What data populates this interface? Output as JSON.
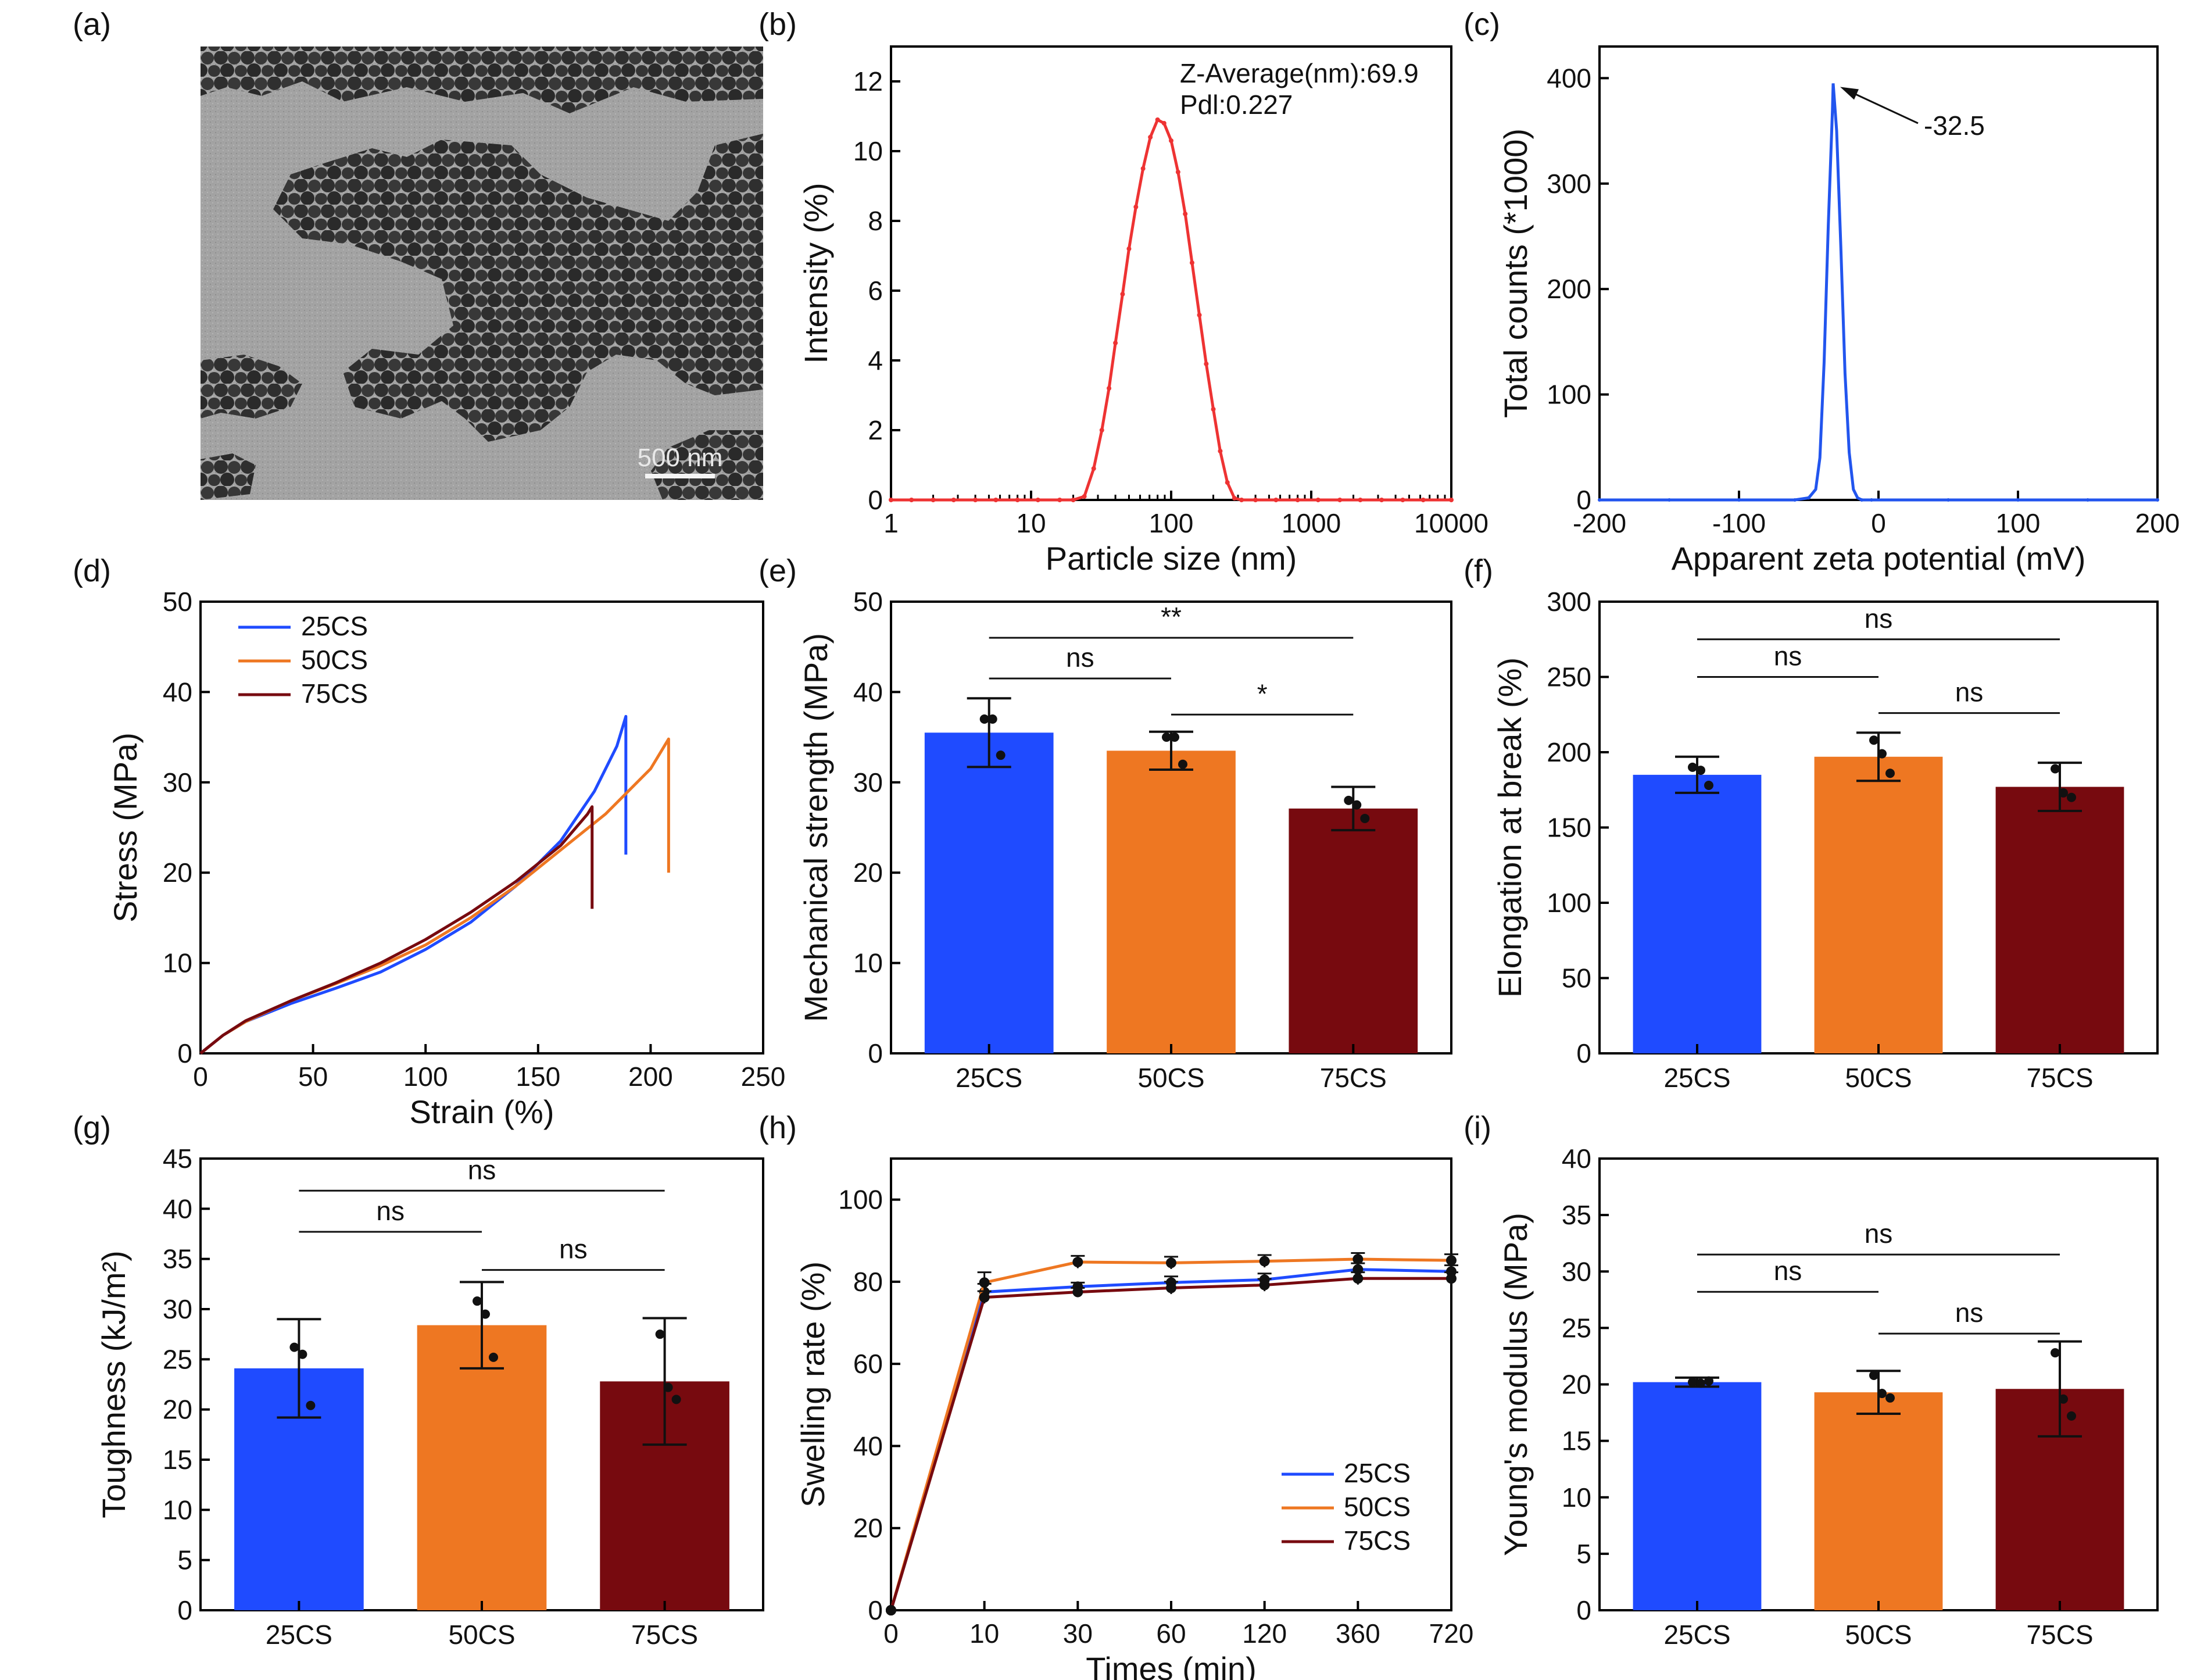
{
  "panel_labels": [
    "(a)",
    "(b)",
    "(c)",
    "(d)",
    "(e)",
    "(f)",
    "(g)",
    "(h)",
    "(i)"
  ],
  "colors": {
    "25CS": "#1f4bff",
    "50CS": "#ee7722",
    "75CS": "#770a0f",
    "dls": "#ee3333",
    "zeta": "#2255ee"
  },
  "chart_data": [
    {
      "panel": "(a)",
      "type": "image",
      "scale_bar": "500 nm"
    },
    {
      "panel": "(b)",
      "type": "line",
      "x_scale": "log",
      "xlabel": "Particle size (nm)",
      "ylabel": "Intensity (%)",
      "xlim": [
        1,
        10000
      ],
      "ylim": [
        0,
        13
      ],
      "x_ticks": [
        1,
        10,
        100,
        1000,
        10000
      ],
      "y_ticks": [
        0,
        2,
        4,
        6,
        8,
        10,
        12
      ],
      "annotations": [
        "Z-Average(nm):69.9",
        "Pdl:0.227"
      ],
      "series": [
        {
          "x": [
            1,
            1.4,
            2,
            2.8,
            4,
            5.6,
            8,
            11.2,
            16,
            20,
            24,
            28,
            32,
            36,
            40,
            45,
            50,
            56,
            63,
            71,
            80,
            89,
            100,
            112,
            126,
            141,
            159,
            178,
            200,
            224,
            252,
            283,
            318,
            400,
            560,
            800,
            1120,
            1600,
            2240,
            3180,
            4500,
            6300,
            10000
          ],
          "y": [
            0,
            0,
            0,
            0,
            0,
            0,
            0,
            0,
            0,
            0,
            0.1,
            0.9,
            2.0,
            3.2,
            4.5,
            5.9,
            7.2,
            8.4,
            9.5,
            10.4,
            10.9,
            10.8,
            10.3,
            9.4,
            8.2,
            6.8,
            5.3,
            3.9,
            2.6,
            1.4,
            0.5,
            0.05,
            0,
            0,
            0,
            0,
            0,
            0,
            0,
            0,
            0,
            0,
            0
          ]
        }
      ]
    },
    {
      "panel": "(c)",
      "type": "line",
      "xlabel": "Apparent zeta potential (mV)",
      "ylabel": "Total  counts (*1000)",
      "xlim": [
        -200,
        200
      ],
      "ylim": [
        0,
        430
      ],
      "x_ticks": [
        -200,
        -100,
        0,
        100,
        200
      ],
      "y_ticks": [
        0,
        100,
        200,
        300,
        400
      ],
      "annotations": [
        "-32.5"
      ],
      "series": [
        {
          "x": [
            -200,
            -150,
            -100,
            -60,
            -50,
            -45,
            -42,
            -39,
            -36,
            -33,
            -32.5,
            -30,
            -27,
            -24,
            -21,
            -18,
            -15,
            -12,
            -5,
            50,
            100,
            150,
            200
          ],
          "y": [
            0,
            0,
            0,
            0,
            2,
            10,
            40,
            130,
            260,
            370,
            395,
            350,
            240,
            120,
            45,
            10,
            2,
            0,
            0,
            0,
            0,
            0,
            0
          ]
        }
      ]
    },
    {
      "panel": "(d)",
      "type": "line",
      "xlabel": "Strain (%)",
      "ylabel": "Stress (MPa)",
      "xlim": [
        0,
        250
      ],
      "ylim": [
        0,
        50
      ],
      "x_ticks": [
        0,
        50,
        100,
        150,
        200,
        250
      ],
      "y_ticks": [
        0,
        10,
        20,
        30,
        40,
        50
      ],
      "legend": "top-left",
      "series": [
        {
          "name": "25CS",
          "x": [
            0,
            10,
            20,
            40,
            60,
            80,
            100,
            120,
            140,
            160,
            175,
            185,
            189,
            189
          ],
          "y": [
            0,
            2,
            3.5,
            5.5,
            7.2,
            9,
            11.5,
            14.5,
            18.5,
            23.5,
            29,
            34,
            37.3,
            22
          ]
        },
        {
          "name": "50CS",
          "x": [
            0,
            10,
            20,
            40,
            60,
            80,
            100,
            120,
            140,
            160,
            180,
            200,
            208,
            208
          ],
          "y": [
            0,
            2,
            3.5,
            5.8,
            7.7,
            9.7,
            12,
            15,
            18.5,
            22.5,
            26.5,
            31.5,
            34.8,
            20
          ]
        },
        {
          "name": "75CS",
          "x": [
            0,
            10,
            20,
            40,
            60,
            80,
            100,
            120,
            140,
            160,
            172,
            174,
            174
          ],
          "y": [
            0,
            2,
            3.6,
            5.8,
            7.8,
            10,
            12.6,
            15.6,
            19,
            23,
            26.5,
            27.3,
            16
          ]
        }
      ]
    },
    {
      "panel": "(e)",
      "type": "bar",
      "ylabel": "Mechanical strength (MPa)",
      "ylim": [
        0,
        50
      ],
      "y_ticks": [
        0,
        10,
        20,
        30,
        40,
        50
      ],
      "categories": [
        "25CS",
        "50CS",
        "75CS"
      ],
      "values": [
        35.5,
        33.5,
        27.1
      ],
      "errors": [
        3.8,
        2.1,
        2.4
      ],
      "points": [
        [
          37,
          37,
          33
        ],
        [
          35,
          35,
          32
        ],
        [
          28,
          27.5,
          26
        ]
      ],
      "significance": [
        {
          "pair": [
            "25CS",
            "50CS"
          ],
          "label": "ns",
          "y": 41.5
        },
        {
          "pair": [
            "50CS",
            "75CS"
          ],
          "label": "*",
          "y": 37.5
        },
        {
          "pair": [
            "25CS",
            "75CS"
          ],
          "label": "**",
          "y": 46
        }
      ]
    },
    {
      "panel": "(f)",
      "type": "bar",
      "ylabel": "Elongation at break (%)",
      "ylim": [
        0,
        300
      ],
      "y_ticks": [
        0,
        50,
        100,
        150,
        200,
        250,
        300
      ],
      "categories": [
        "25CS",
        "50CS",
        "75CS"
      ],
      "values": [
        185,
        197,
        177
      ],
      "errors": [
        12,
        16,
        16
      ],
      "points": [
        [
          190,
          188,
          178
        ],
        [
          208,
          199,
          186
        ],
        [
          189,
          173,
          170
        ]
      ],
      "significance": [
        {
          "pair": [
            "25CS",
            "50CS"
          ],
          "label": "ns",
          "y": 250
        },
        {
          "pair": [
            "50CS",
            "75CS"
          ],
          "label": "ns",
          "y": 226
        },
        {
          "pair": [
            "25CS",
            "75CS"
          ],
          "label": "ns",
          "y": 275
        }
      ]
    },
    {
      "panel": "(g)",
      "type": "bar",
      "ylabel": "Toughness (kJ/m²)",
      "ylim": [
        0,
        45
      ],
      "y_ticks": [
        0,
        5,
        10,
        15,
        20,
        25,
        30,
        35,
        40,
        45
      ],
      "categories": [
        "25CS",
        "50CS",
        "75CS"
      ],
      "values": [
        24.1,
        28.4,
        22.8
      ],
      "errors": [
        4.9,
        4.3,
        6.3
      ],
      "points": [
        [
          26.2,
          25.5,
          20.4
        ],
        [
          30.8,
          29.5,
          25.2
        ],
        [
          27.5,
          22.2,
          21
        ]
      ],
      "significance": [
        {
          "pair": [
            "25CS",
            "50CS"
          ],
          "label": "ns",
          "y": 37.7
        },
        {
          "pair": [
            "50CS",
            "75CS"
          ],
          "label": "ns",
          "y": 33.9
        },
        {
          "pair": [
            "25CS",
            "75CS"
          ],
          "label": "ns",
          "y": 41.8
        }
      ]
    },
    {
      "panel": "(h)",
      "type": "line",
      "xlabel": "Times (min)",
      "ylabel": "Swelling rate (%)",
      "categories": [
        "0",
        "10",
        "30",
        "60",
        "120",
        "360",
        "720"
      ],
      "ylim": [
        0,
        110
      ],
      "y_ticks": [
        0,
        20,
        40,
        60,
        80,
        100
      ],
      "legend": "bottom-right",
      "series": [
        {
          "name": "25CS",
          "values": [
            0,
            77.5,
            78.8,
            79.8,
            80.5,
            83,
            82.5
          ],
          "errors": [
            0,
            2,
            1,
            1.5,
            1.5,
            1.5,
            1.5
          ]
        },
        {
          "name": "50CS",
          "values": [
            0,
            79.8,
            84.8,
            84.6,
            85,
            85.5,
            85.2
          ],
          "errors": [
            0,
            2.5,
            1.5,
            1.5,
            1.5,
            1.5,
            1.5
          ]
        },
        {
          "name": "75CS",
          "values": [
            0,
            76.2,
            77.5,
            78.5,
            79.2,
            80.8,
            80.8
          ],
          "errors": [
            0,
            1.5,
            1,
            1.5,
            1.5,
            1.5,
            1.5
          ]
        }
      ]
    },
    {
      "panel": "(i)",
      "type": "bar",
      "ylabel": "Young's modulus (MPa)",
      "ylim": [
        0,
        40
      ],
      "y_ticks": [
        0,
        5,
        10,
        15,
        20,
        25,
        30,
        35,
        40
      ],
      "categories": [
        "25CS",
        "50CS",
        "75CS"
      ],
      "values": [
        20.2,
        19.3,
        19.6
      ],
      "errors": [
        0.4,
        1.9,
        4.2
      ],
      "points": [
        [
          20.2,
          20.1,
          20.3
        ],
        [
          20.8,
          19.2,
          18.8
        ],
        [
          22.8,
          18.7,
          17.2
        ]
      ],
      "significance": [
        {
          "pair": [
            "25CS",
            "50CS"
          ],
          "label": "ns",
          "y": 28.2
        },
        {
          "pair": [
            "50CS",
            "75CS"
          ],
          "label": "ns",
          "y": 24.5
        },
        {
          "pair": [
            "25CS",
            "75CS"
          ],
          "label": "ns",
          "y": 31.5
        }
      ]
    }
  ]
}
